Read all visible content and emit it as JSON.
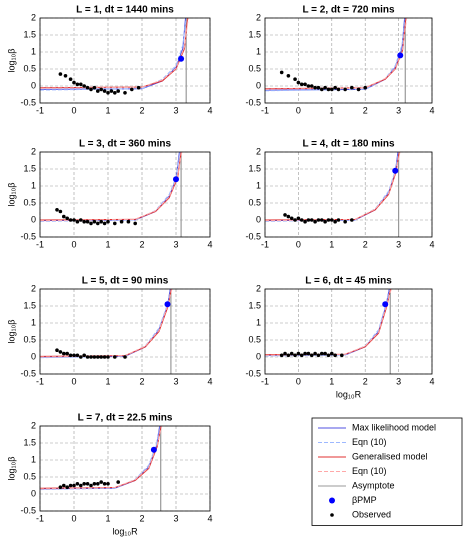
{
  "legend": [
    {
      "name": "Max likelihood model",
      "color": "#5050e0",
      "style": "solid"
    },
    {
      "name": "Eqn (10)",
      "color": "#9db8ff",
      "style": "dashed"
    },
    {
      "name": "Generalised model",
      "color": "#e03030",
      "style": "solid"
    },
    {
      "name": "Eqn (10)",
      "color": "#ffa8a8",
      "style": "dashed"
    },
    {
      "name": "Asymptote",
      "color": "#999999",
      "style": "solid"
    },
    {
      "name": "βPMP",
      "color": "#0000ff",
      "style": "marker"
    },
    {
      "name": "Observed",
      "color": "#000000",
      "style": "marker"
    }
  ],
  "chart_data": [
    {
      "type": "scatter",
      "title": "L = 1, dt = 1440 mins",
      "ylabel": "log₁₀β",
      "xlim": [
        -1,
        4
      ],
      "ylim": [
        -0.5,
        2
      ],
      "xticks": [
        -1,
        0,
        1,
        2,
        3,
        4
      ],
      "yticks": [
        -0.5,
        0,
        0.5,
        1,
        1.5,
        2
      ],
      "grid": true,
      "curves": [
        {
          "x": [
            -1,
            2,
            2.6,
            3,
            3.2,
            3.28
          ],
          "y": [
            -0.1,
            -0.08,
            0.15,
            0.55,
            1.1,
            2
          ]
        },
        {
          "x": [
            -1,
            2,
            2.6,
            3,
            3.2,
            3.3
          ],
          "y": [
            -0.12,
            -0.08,
            0.2,
            0.6,
            1.2,
            2
          ]
        },
        {
          "x": [
            -1,
            2,
            2.6,
            3,
            3.25,
            3.34
          ],
          "y": [
            -0.05,
            -0.03,
            0.15,
            0.5,
            1.1,
            2
          ]
        },
        {
          "x": [
            -1,
            2,
            2.6,
            3,
            3.25,
            3.36
          ],
          "y": [
            -0.07,
            -0.03,
            0.18,
            0.52,
            1.15,
            2
          ]
        }
      ],
      "asymptote": 3.3,
      "pmp": {
        "x": 3.15,
        "y": 0.8
      },
      "observed": {
        "x": [
          -0.4,
          -0.25,
          -0.1,
          0,
          0.1,
          0.2,
          0.3,
          0.4,
          0.5,
          0.6,
          0.7,
          0.8,
          0.9,
          1,
          1.1,
          1.2,
          1.3,
          1.5,
          1.7,
          1.9
        ],
        "y": [
          0.35,
          0.3,
          0.2,
          0.1,
          0.05,
          0.05,
          0,
          -0.05,
          -0.1,
          -0.05,
          -0.15,
          -0.1,
          -0.15,
          -0.2,
          -0.15,
          -0.2,
          -0.15,
          -0.2,
          -0.1,
          -0.05
        ]
      }
    },
    {
      "type": "scatter",
      "title": "L = 2, dt = 720 mins",
      "xlim": [
        -1,
        4
      ],
      "ylim": [
        -0.5,
        2
      ],
      "xticks": [
        -1,
        0,
        1,
        2,
        3,
        4
      ],
      "yticks": [
        -0.5,
        0,
        0.5,
        1,
        1.5,
        2
      ],
      "grid": true,
      "curves": [
        {
          "x": [
            -1,
            2,
            2.6,
            2.9,
            3.1,
            3.18
          ],
          "y": [
            -0.12,
            -0.1,
            0.2,
            0.55,
            1.1,
            2
          ]
        },
        {
          "x": [
            -1,
            2,
            2.6,
            2.9,
            3.1,
            3.2
          ],
          "y": [
            -0.14,
            -0.1,
            0.22,
            0.6,
            1.2,
            2
          ]
        },
        {
          "x": [
            -1,
            2,
            2.6,
            2.9,
            3.12,
            3.22
          ],
          "y": [
            -0.08,
            -0.05,
            0.2,
            0.5,
            1.05,
            2
          ]
        },
        {
          "x": [
            -1,
            2,
            2.6,
            2.9,
            3.12,
            3.24
          ],
          "y": [
            -0.1,
            -0.05,
            0.22,
            0.52,
            1.1,
            2
          ]
        }
      ],
      "asymptote": 3.2,
      "pmp": {
        "x": 3.05,
        "y": 0.9
      },
      "observed": {
        "x": [
          -0.5,
          -0.3,
          -0.1,
          0,
          0.1,
          0.2,
          0.3,
          0.4,
          0.5,
          0.6,
          0.7,
          0.8,
          0.9,
          1,
          1.1,
          1.2,
          1.4,
          1.6,
          1.8,
          2
        ],
        "y": [
          0.4,
          0.3,
          0.2,
          0.1,
          0.05,
          0.05,
          0,
          0,
          -0.05,
          -0.05,
          -0.1,
          -0.05,
          -0.1,
          -0.1,
          -0.05,
          -0.1,
          -0.1,
          -0.05,
          -0.1,
          -0.05
        ]
      }
    },
    {
      "type": "scatter",
      "title": "L = 3, dt = 360 mins",
      "ylabel": "log₁₀β",
      "xlim": [
        -1,
        4
      ],
      "ylim": [
        -0.5,
        2
      ],
      "xticks": [
        -1,
        0,
        1,
        2,
        3,
        4
      ],
      "yticks": [
        -0.5,
        0,
        0.5,
        1,
        1.5,
        2
      ],
      "grid": true,
      "curves": [
        {
          "x": [
            -1,
            1.8,
            2.4,
            2.8,
            3,
            3.1
          ],
          "y": [
            -0.02,
            0,
            0.25,
            0.7,
            1.2,
            2
          ]
        },
        {
          "x": [
            -1,
            1.8,
            2.4,
            2.8,
            3,
            3.12
          ],
          "y": [
            -0.04,
            0,
            0.28,
            0.75,
            1.25,
            2
          ]
        },
        {
          "x": [
            -1,
            1.8,
            2.4,
            2.8,
            3.05,
            3.15
          ],
          "y": [
            0,
            0.02,
            0.25,
            0.65,
            1.25,
            2
          ]
        },
        {
          "x": [
            -1,
            1.8,
            2.4,
            2.8,
            3.05,
            3.17
          ],
          "y": [
            -0.02,
            0.02,
            0.27,
            0.68,
            1.3,
            2
          ]
        }
      ],
      "asymptote": 3.15,
      "pmp": {
        "x": 3,
        "y": 1.2
      },
      "observed": {
        "x": [
          -0.5,
          -0.4,
          -0.3,
          -0.2,
          -0.1,
          0,
          0.1,
          0.2,
          0.3,
          0.4,
          0.5,
          0.6,
          0.7,
          0.8,
          0.9,
          1,
          1.2,
          1.4,
          1.6,
          1.8
        ],
        "y": [
          0.3,
          0.25,
          0.1,
          0.05,
          0,
          0,
          -0.05,
          0,
          -0.05,
          -0.05,
          -0.1,
          -0.05,
          -0.1,
          -0.05,
          -0.1,
          -0.05,
          -0.1,
          -0.05,
          -0.05,
          -0.1
        ]
      }
    },
    {
      "type": "scatter",
      "title": "L = 4, dt = 180 mins",
      "xlim": [
        -1,
        4
      ],
      "ylim": [
        -0.5,
        2
      ],
      "xticks": [
        -1,
        0,
        1,
        2,
        3,
        4
      ],
      "yticks": [
        -0.5,
        0,
        0.5,
        1,
        1.5,
        2
      ],
      "grid": true,
      "curves": [
        {
          "x": [
            -1,
            1.7,
            2.3,
            2.7,
            2.9,
            2.98
          ],
          "y": [
            -0.02,
            0,
            0.3,
            0.8,
            1.4,
            2
          ]
        },
        {
          "x": [
            -1,
            1.7,
            2.3,
            2.7,
            2.9,
            3
          ],
          "y": [
            -0.04,
            0,
            0.33,
            0.85,
            1.45,
            2
          ]
        },
        {
          "x": [
            -1,
            1.7,
            2.3,
            2.7,
            2.92,
            3.02
          ],
          "y": [
            0,
            0.02,
            0.3,
            0.75,
            1.4,
            2
          ]
        },
        {
          "x": [
            -1,
            1.7,
            2.3,
            2.7,
            2.92,
            3.04
          ],
          "y": [
            -0.02,
            0.02,
            0.32,
            0.78,
            1.45,
            2
          ]
        }
      ],
      "asymptote": 3,
      "pmp": {
        "x": 2.9,
        "y": 1.45
      },
      "observed": {
        "x": [
          -0.4,
          -0.3,
          -0.2,
          -0.1,
          0,
          0.1,
          0.2,
          0.3,
          0.4,
          0.5,
          0.6,
          0.7,
          0.8,
          0.9,
          1,
          1.1,
          1.2,
          1.4,
          1.6
        ],
        "y": [
          0.15,
          0.1,
          0.05,
          0,
          0.05,
          0,
          -0.05,
          0,
          0,
          -0.05,
          0,
          0,
          -0.05,
          0,
          0,
          -0.05,
          0,
          -0.05,
          0
        ]
      }
    },
    {
      "type": "scatter",
      "title": "L = 5, dt = 90 mins",
      "ylabel": "log₁₀β",
      "xlim": [
        -1,
        4
      ],
      "ylim": [
        -0.5,
        2
      ],
      "xticks": [
        -1,
        0,
        1,
        2,
        3,
        4
      ],
      "yticks": [
        -0.5,
        0,
        0.5,
        1,
        1.5,
        2
      ],
      "grid": true,
      "curves": [
        {
          "x": [
            -1,
            1.5,
            2.1,
            2.5,
            2.75,
            2.83
          ],
          "y": [
            0,
            0.02,
            0.3,
            0.8,
            1.5,
            2
          ]
        },
        {
          "x": [
            -1,
            1.5,
            2.1,
            2.5,
            2.75,
            2.85
          ],
          "y": [
            -0.02,
            0.02,
            0.33,
            0.85,
            1.55,
            2
          ]
        },
        {
          "x": [
            -1,
            1.5,
            2.1,
            2.5,
            2.77,
            2.86
          ],
          "y": [
            0.02,
            0.04,
            0.3,
            0.75,
            1.5,
            2
          ]
        },
        {
          "x": [
            -1,
            1.5,
            2.1,
            2.5,
            2.77,
            2.88
          ],
          "y": [
            0,
            0.04,
            0.32,
            0.78,
            1.55,
            2
          ]
        }
      ],
      "asymptote": 2.85,
      "pmp": {
        "x": 2.75,
        "y": 1.55
      },
      "observed": {
        "x": [
          -0.5,
          -0.4,
          -0.3,
          -0.2,
          -0.1,
          0,
          0.1,
          0.2,
          0.3,
          0.4,
          0.5,
          0.6,
          0.7,
          0.8,
          0.9,
          1,
          1.2,
          1.5
        ],
        "y": [
          0.2,
          0.15,
          0.1,
          0.1,
          0.05,
          0.05,
          0.05,
          0,
          0.05,
          0,
          0,
          0,
          0,
          0,
          0,
          0,
          0,
          0
        ]
      }
    },
    {
      "type": "scatter",
      "title": "L = 6, dt = 45 mins",
      "xlabel": "log₁₀R",
      "xlim": [
        -1,
        4
      ],
      "ylim": [
        -0.5,
        2
      ],
      "xticks": [
        -1,
        0,
        1,
        2,
        3,
        4
      ],
      "yticks": [
        -0.5,
        0,
        0.5,
        1,
        1.5,
        2
      ],
      "grid": true,
      "curves": [
        {
          "x": [
            -1,
            1.4,
            2,
            2.4,
            2.62,
            2.72
          ],
          "y": [
            0.05,
            0.06,
            0.3,
            0.75,
            1.5,
            2
          ]
        },
        {
          "x": [
            -1,
            1.4,
            2,
            2.4,
            2.62,
            2.74
          ],
          "y": [
            0.03,
            0.06,
            0.33,
            0.8,
            1.55,
            2
          ]
        },
        {
          "x": [
            -1,
            1.4,
            2,
            2.4,
            2.65,
            2.76
          ],
          "y": [
            0.07,
            0.08,
            0.3,
            0.7,
            1.5,
            2
          ]
        },
        {
          "x": [
            -1,
            1.4,
            2,
            2.4,
            2.65,
            2.78
          ],
          "y": [
            0.05,
            0.08,
            0.32,
            0.73,
            1.55,
            2
          ]
        }
      ],
      "asymptote": 2.75,
      "pmp": {
        "x": 2.6,
        "y": 1.55
      },
      "observed": {
        "x": [
          -0.5,
          -0.4,
          -0.3,
          -0.2,
          -0.1,
          0,
          0.1,
          0.2,
          0.3,
          0.4,
          0.5,
          0.6,
          0.7,
          0.8,
          0.9,
          1,
          1.1,
          1.3
        ],
        "y": [
          0.05,
          0.1,
          0.05,
          0.1,
          0.05,
          0.1,
          0.05,
          0.1,
          0.1,
          0.05,
          0.1,
          0.05,
          0.1,
          0.1,
          0.05,
          0.1,
          0.05,
          0.05
        ]
      }
    },
    {
      "type": "scatter",
      "title": "L = 7, dt = 22.5 mins",
      "ylabel": "log₁₀β",
      "xlabel": "log₁₀R",
      "xlim": [
        -1,
        4
      ],
      "ylim": [
        -0.5,
        2
      ],
      "xticks": [
        -1,
        0,
        1,
        2,
        3,
        4
      ],
      "yticks": [
        -0.5,
        0,
        0.5,
        1,
        1.5,
        2
      ],
      "grid": true,
      "curves": [
        {
          "x": [
            -1,
            1.2,
            1.8,
            2.2,
            2.42,
            2.52
          ],
          "y": [
            0.15,
            0.17,
            0.4,
            0.8,
            1.4,
            2
          ]
        },
        {
          "x": [
            -1,
            1.2,
            1.8,
            2.2,
            2.42,
            2.54
          ],
          "y": [
            0.13,
            0.17,
            0.43,
            0.85,
            1.45,
            2
          ]
        },
        {
          "x": [
            -1,
            1.2,
            1.8,
            2.2,
            2.45,
            2.56
          ],
          "y": [
            0.17,
            0.19,
            0.4,
            0.75,
            1.4,
            2
          ]
        },
        {
          "x": [
            -1,
            1.2,
            1.8,
            2.2,
            2.45,
            2.58
          ],
          "y": [
            0.15,
            0.19,
            0.42,
            0.78,
            1.45,
            2
          ]
        }
      ],
      "asymptote": 2.55,
      "pmp": {
        "x": 2.35,
        "y": 1.3
      },
      "observed": {
        "x": [
          -0.4,
          -0.3,
          -0.2,
          -0.1,
          0,
          0.1,
          0.2,
          0.3,
          0.4,
          0.5,
          0.6,
          0.7,
          0.8,
          0.9,
          1,
          1.3
        ],
        "y": [
          0.2,
          0.25,
          0.2,
          0.25,
          0.25,
          0.3,
          0.25,
          0.3,
          0.3,
          0.25,
          0.3,
          0.3,
          0.35,
          0.3,
          0.3,
          0.35
        ]
      }
    }
  ]
}
